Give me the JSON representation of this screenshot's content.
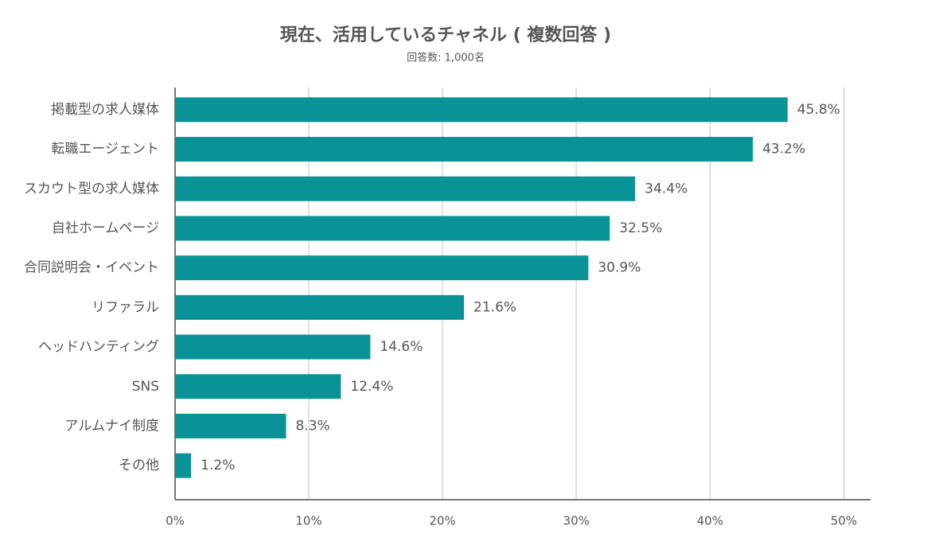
{
  "chart_data": {
    "type": "bar",
    "orientation": "horizontal",
    "title": "現在、活用しているチャネル ( 複数回答 )",
    "subtitle": "回答数: 1,000名",
    "categories": [
      "掲載型の求人媒体",
      "転職エージェント",
      "スカウト型の求人媒体",
      "自社ホームページ",
      "合同説明会・イベント",
      "リファラル",
      "ヘッドハンティング",
      "SNS",
      "アルムナイ制度",
      "その他"
    ],
    "values": [
      45.8,
      43.2,
      34.4,
      32.5,
      30.9,
      21.6,
      14.6,
      12.4,
      8.3,
      1.2
    ],
    "value_labels": [
      "45.8%",
      "43.2%",
      "34.4%",
      "32.5%",
      "30.9%",
      "21.6%",
      "14.6%",
      "12.4%",
      "8.3%",
      "1.2%"
    ],
    "color": "#0a9396",
    "xlim": [
      0,
      52
    ],
    "xticks": [
      {
        "value": 0,
        "label": "0%"
      },
      {
        "value": 10,
        "label": "10%"
      },
      {
        "value": 20,
        "label": "20%"
      },
      {
        "value": 30,
        "label": "30%"
      },
      {
        "value": 40,
        "label": "40%"
      },
      {
        "value": 50,
        "label": "50%"
      }
    ],
    "grid": true
  }
}
